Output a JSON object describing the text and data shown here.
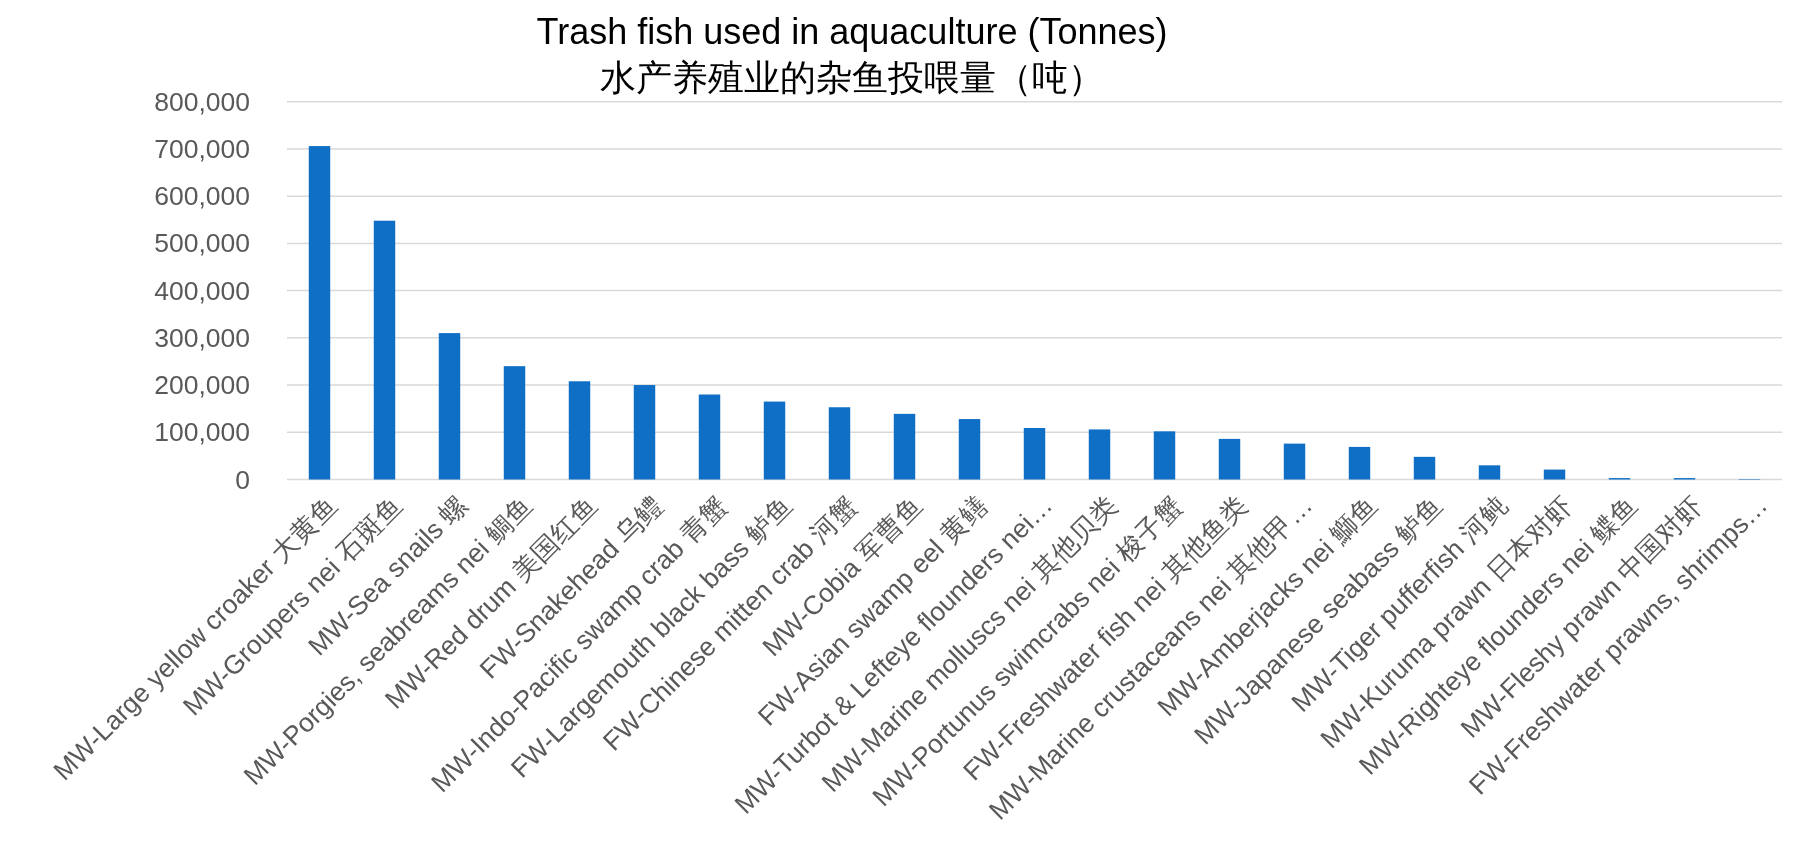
{
  "chart_data": {
    "type": "bar",
    "title": "Trash fish used in aquaculture (Tonnes)",
    "subtitle": "水产养殖业的杂鱼投喂量（吨）",
    "categories": [
      "MW-Large yellow croaker 大黄鱼",
      "MW-Groupers nei 石斑鱼",
      "MW-Sea snails 螺",
      "MW-Porgies, seabreams nei 鲷鱼",
      "MW-Red drum 美国红鱼",
      "FW-Snakehead 乌鳢",
      "MW-Indo-Pacific swamp crab 青蟹",
      "FW-Largemouth black bass 鲈鱼",
      "FW-Chinese mitten crab 河蟹",
      "MW-Cobia 军曹鱼",
      "FW-Asian swamp eel 黄鳝",
      "MW-Turbot & Lefteye flounders nei…",
      "MW-Marine molluscs nei 其他贝类",
      "MW-Portunus swimcrabs nei 梭子蟹",
      "FW-Freshwater fish nei 其他鱼类",
      "MW-Marine crustaceans nei 其他甲…",
      "MW-Amberjacks nei 鰤鱼",
      "MW-Japanese seabass 鲈鱼",
      "MW-Tiger pufferfish 河鲀",
      "MW-Kuruma prawn 日本对虾",
      "MW-Righteye flounders nei 鲽鱼",
      "MW-Fleshy prawn 中国对虾",
      "FW-Freshwater prawns, shrimps…"
    ],
    "values": [
      706000,
      548000,
      310000,
      240000,
      208000,
      200000,
      180000,
      165000,
      153000,
      139000,
      128000,
      109000,
      106000,
      102000,
      86000,
      76000,
      69000,
      48000,
      30000,
      21000,
      3000,
      3000,
      1000
    ],
    "color": "#0f6fc6",
    "ylim": [
      0,
      800000
    ],
    "yticks": [
      {
        "value": 0,
        "label": "0"
      },
      {
        "value": 100000,
        "label": "100,000"
      },
      {
        "value": 200000,
        "label": "200,000"
      },
      {
        "value": 300000,
        "label": "300,000"
      },
      {
        "value": 400000,
        "label": "400,000"
      },
      {
        "value": 500000,
        "label": "500,000"
      },
      {
        "value": 600000,
        "label": "600,000"
      },
      {
        "value": 700000,
        "label": "700,000"
      },
      {
        "value": 800000,
        "label": "800,000"
      }
    ],
    "grid": "y"
  }
}
